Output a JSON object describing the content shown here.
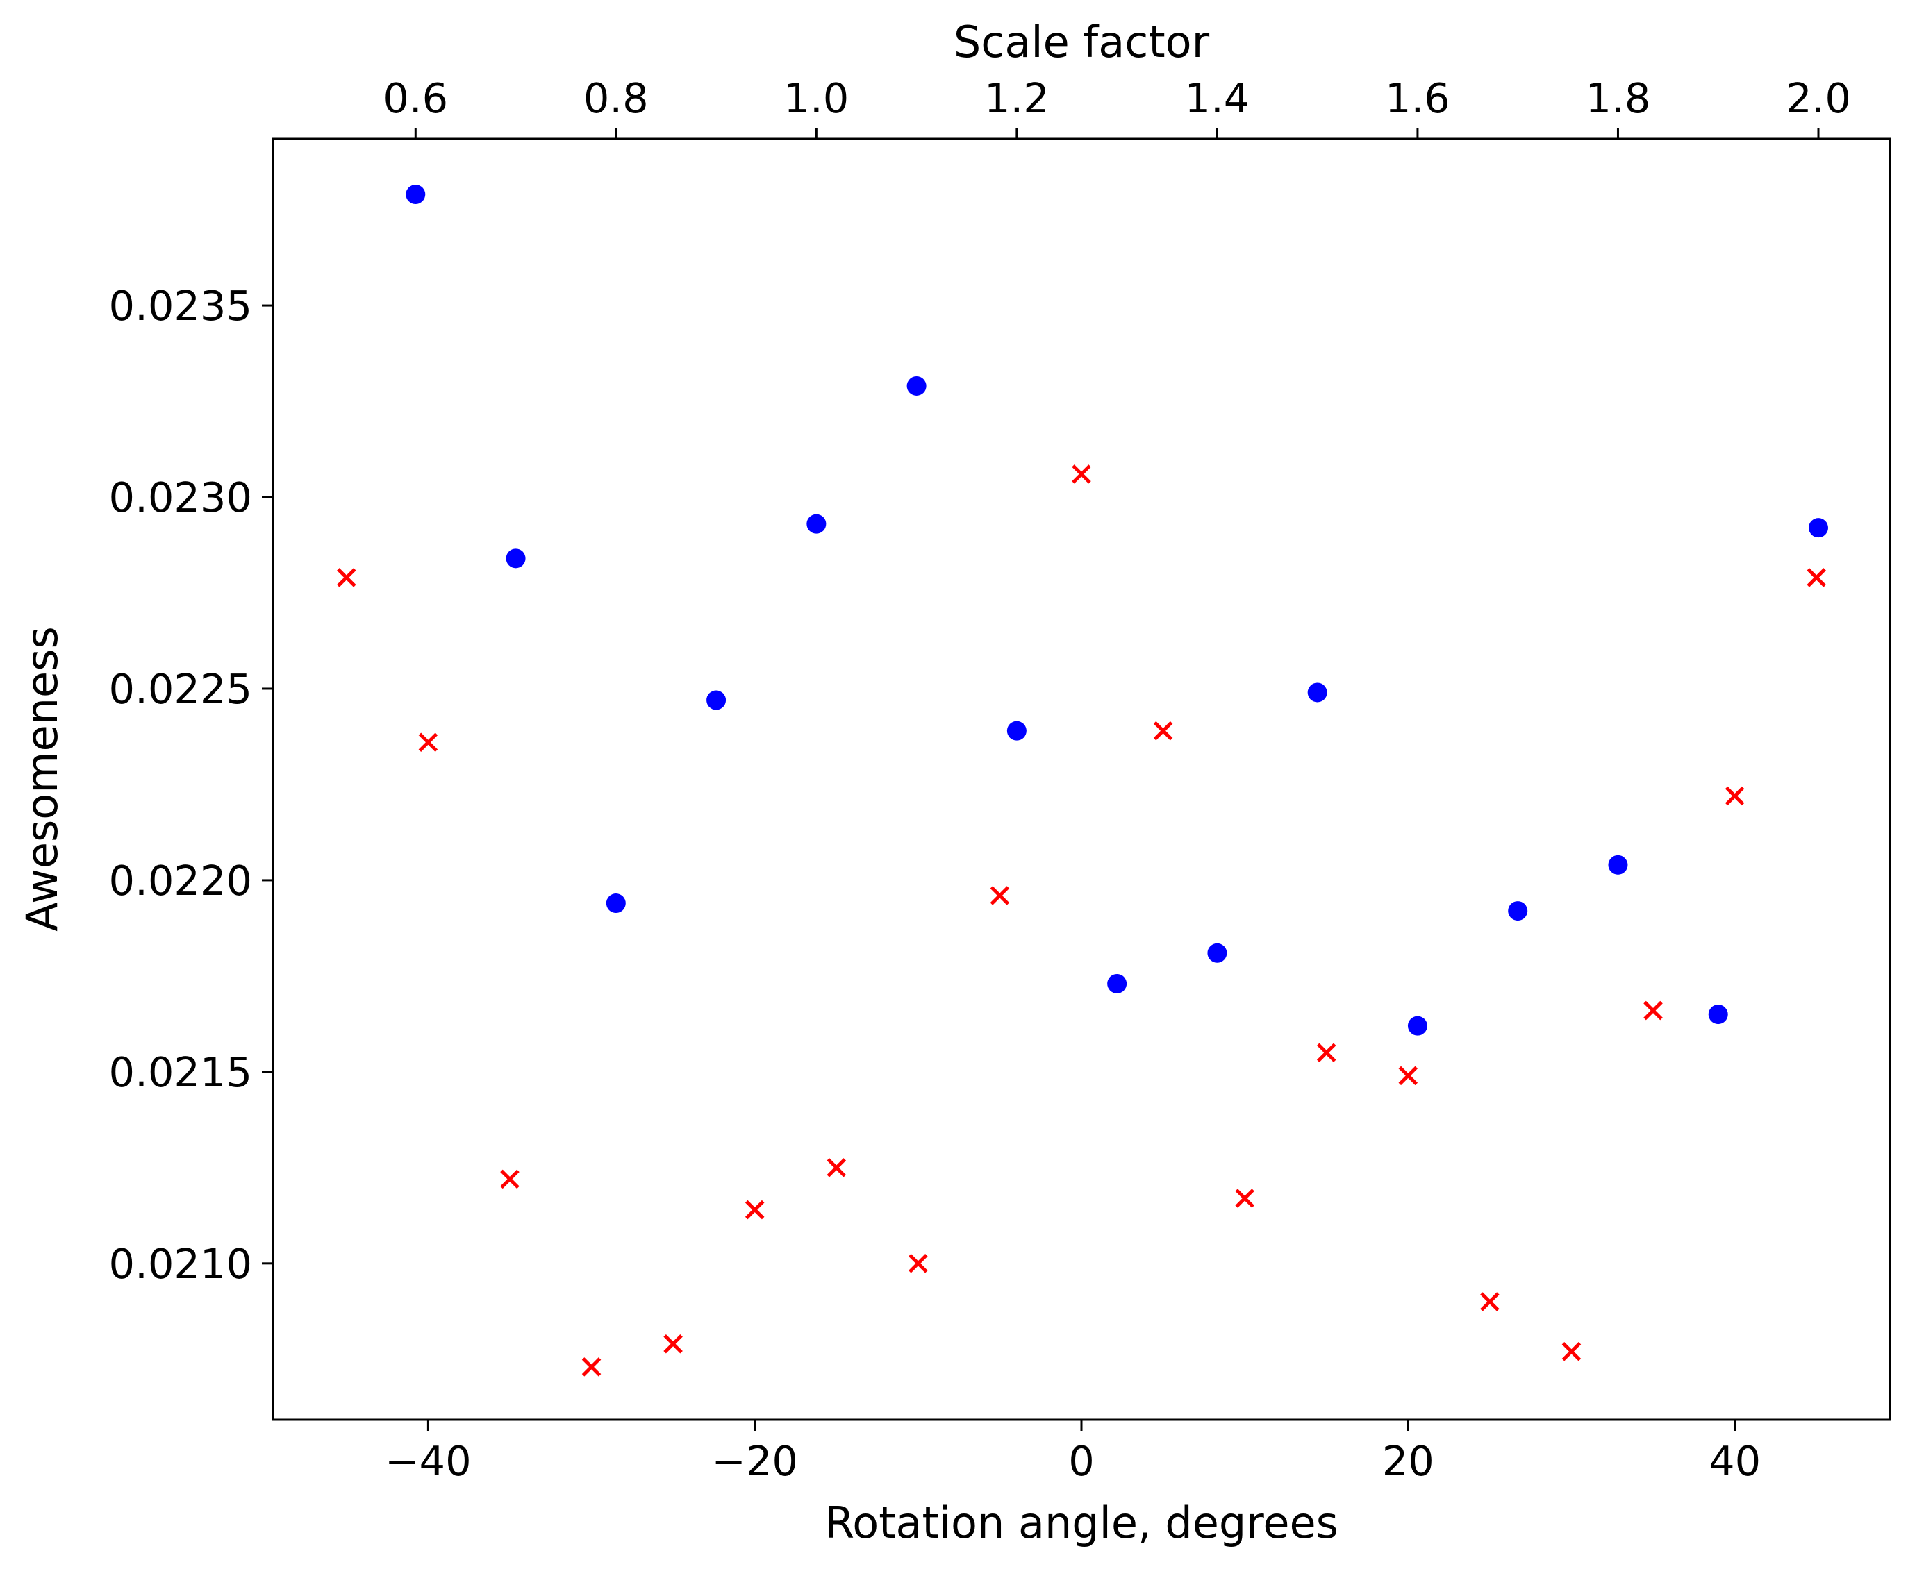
{
  "chart_data": {
    "type": "scatter",
    "title": "",
    "xlabel": "Rotation angle, degrees",
    "ylabel": "Awesomeness",
    "x2label": "Scale factor",
    "xlim": [
      -49.5,
      49.5
    ],
    "x2lim": [
      0.4577,
      2.0714
    ],
    "ylim": [
      0.020592,
      0.023935
    ],
    "grid": false,
    "x_ticks": [
      {
        "value": -40,
        "label": "−40"
      },
      {
        "value": -20,
        "label": "−20"
      },
      {
        "value": 0,
        "label": "0"
      },
      {
        "value": 20,
        "label": "20"
      },
      {
        "value": 40,
        "label": "40"
      }
    ],
    "x2_ticks": [
      {
        "value": 0.6,
        "label": "0.6"
      },
      {
        "value": 0.8,
        "label": "0.8"
      },
      {
        "value": 1.0,
        "label": "1.0"
      },
      {
        "value": 1.2,
        "label": "1.2"
      },
      {
        "value": 1.4,
        "label": "1.4"
      },
      {
        "value": 1.6,
        "label": "1.6"
      },
      {
        "value": 1.8,
        "label": "1.8"
      },
      {
        "value": 2.0,
        "label": "2.0"
      }
    ],
    "y_ticks": [
      {
        "value": 0.021,
        "label": "0.0210"
      },
      {
        "value": 0.0215,
        "label": "0.0215"
      },
      {
        "value": 0.022,
        "label": "0.0220"
      },
      {
        "value": 0.0225,
        "label": "0.0225"
      },
      {
        "value": 0.023,
        "label": "0.0230"
      },
      {
        "value": 0.0235,
        "label": "0.0235"
      }
    ],
    "series": [
      {
        "axis": "top",
        "marker": "circle",
        "color": "#0000ff",
        "x": [
          0.6,
          0.7,
          0.8,
          0.9,
          1.0,
          1.1,
          1.2,
          1.3,
          1.4,
          1.5,
          1.6,
          1.7,
          1.8,
          1.9,
          2.0
        ],
        "y": [
          0.02379,
          0.02284,
          0.02194,
          0.02247,
          0.02293,
          0.02329,
          0.02239,
          0.02173,
          0.02181,
          0.02249,
          0.02162,
          0.02192,
          0.02204,
          0.02165,
          0.02292
        ]
      },
      {
        "axis": "bottom",
        "marker": "x",
        "color": "#ff0000",
        "x": [
          -45,
          -40,
          -35,
          -30,
          -25,
          -20,
          -15,
          -10,
          -5,
          0,
          5,
          10,
          15,
          20,
          25,
          30,
          35,
          40,
          45
        ],
        "y": [
          0.02279,
          0.02236,
          0.02122,
          0.02073,
          0.02079,
          0.02114,
          0.02125,
          0.021,
          0.02196,
          0.02306,
          0.02239,
          0.02117,
          0.02155,
          0.02149,
          0.0209,
          0.02077,
          0.02166,
          0.02222,
          0.02279
        ]
      }
    ]
  }
}
